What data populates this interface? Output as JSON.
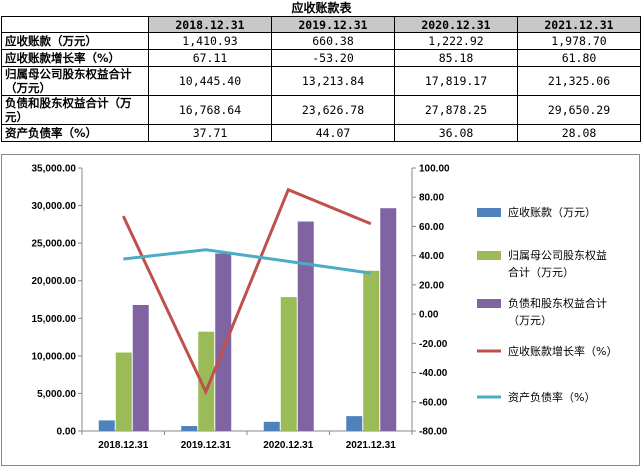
{
  "table": {
    "title": "应收账款表",
    "headers": [
      "2018.12.31",
      "2019.12.31",
      "2020.12.31",
      "2021.12.31"
    ],
    "rows": [
      {
        "label": "应收账款（万元）",
        "values": [
          "1,410.93",
          "660.38",
          "1,222.92",
          "1,978.70"
        ]
      },
      {
        "label": "应收账款增长率（%）",
        "values": [
          "67.11",
          "-53.20",
          "85.18",
          "61.80"
        ]
      },
      {
        "label": "归属母公司股东权益合计（万元）",
        "values": [
          "10,445.40",
          "13,213.84",
          "17,819.17",
          "21,325.06"
        ]
      },
      {
        "label": "负债和股东权益合计（万元）",
        "values": [
          "16,768.64",
          "23,626.78",
          "27,878.25",
          "29,650.29"
        ]
      },
      {
        "label": "资产负债率（%）",
        "values": [
          "37.71",
          "44.07",
          "36.08",
          "28.08"
        ]
      }
    ]
  },
  "chart_data": {
    "type": "bar",
    "categories": [
      "2018.12.31",
      "2019.12.31",
      "2020.12.31",
      "2021.12.31"
    ],
    "series": [
      {
        "name": "应收账款（万元）",
        "kind": "bar",
        "axis": "left",
        "color": "#4f81bd",
        "values": [
          1410.93,
          660.38,
          1222.92,
          1978.7
        ]
      },
      {
        "name": "归属母公司股东权益合计（万元）",
        "kind": "bar",
        "axis": "left",
        "color": "#9bbb59",
        "values": [
          10445.4,
          13213.84,
          17819.17,
          21325.06
        ]
      },
      {
        "name": "负债和股东权益合计（万元）",
        "kind": "bar",
        "axis": "left",
        "color": "#8064a2",
        "values": [
          16768.64,
          23626.78,
          27878.25,
          29650.29
        ]
      },
      {
        "name": "应收账款增长率（%）",
        "kind": "line",
        "axis": "right",
        "color": "#c0504d",
        "values": [
          67.11,
          -53.2,
          85.18,
          61.8
        ]
      },
      {
        "name": "资产负债率（%）",
        "kind": "line",
        "axis": "right",
        "color": "#4bacc6",
        "values": [
          37.71,
          44.07,
          36.08,
          28.08
        ]
      }
    ],
    "legend_labels": [
      [
        "应收账款（万元）"
      ],
      [
        "归属母公司股东权益",
        "合计（万元）"
      ],
      [
        "负债和股东权益合计",
        "（万元）"
      ],
      [
        "应收账款增长率（%）"
      ],
      [
        "资产负债率（%）"
      ]
    ],
    "y_left": {
      "min": 0,
      "max": 35000,
      "ticks": [
        "0.00",
        "5,000.00",
        "10,000.00",
        "15,000.00",
        "20,000.00",
        "25,000.00",
        "30,000.00",
        "35,000.00"
      ]
    },
    "y_right": {
      "min": -80,
      "max": 100,
      "ticks": [
        "-80.00",
        "-60.00",
        "-40.00",
        "-20.00",
        "0.00",
        "20.00",
        "40.00",
        "60.00",
        "80.00",
        "100.00"
      ]
    },
    "grid": false,
    "legend_position": "right"
  }
}
